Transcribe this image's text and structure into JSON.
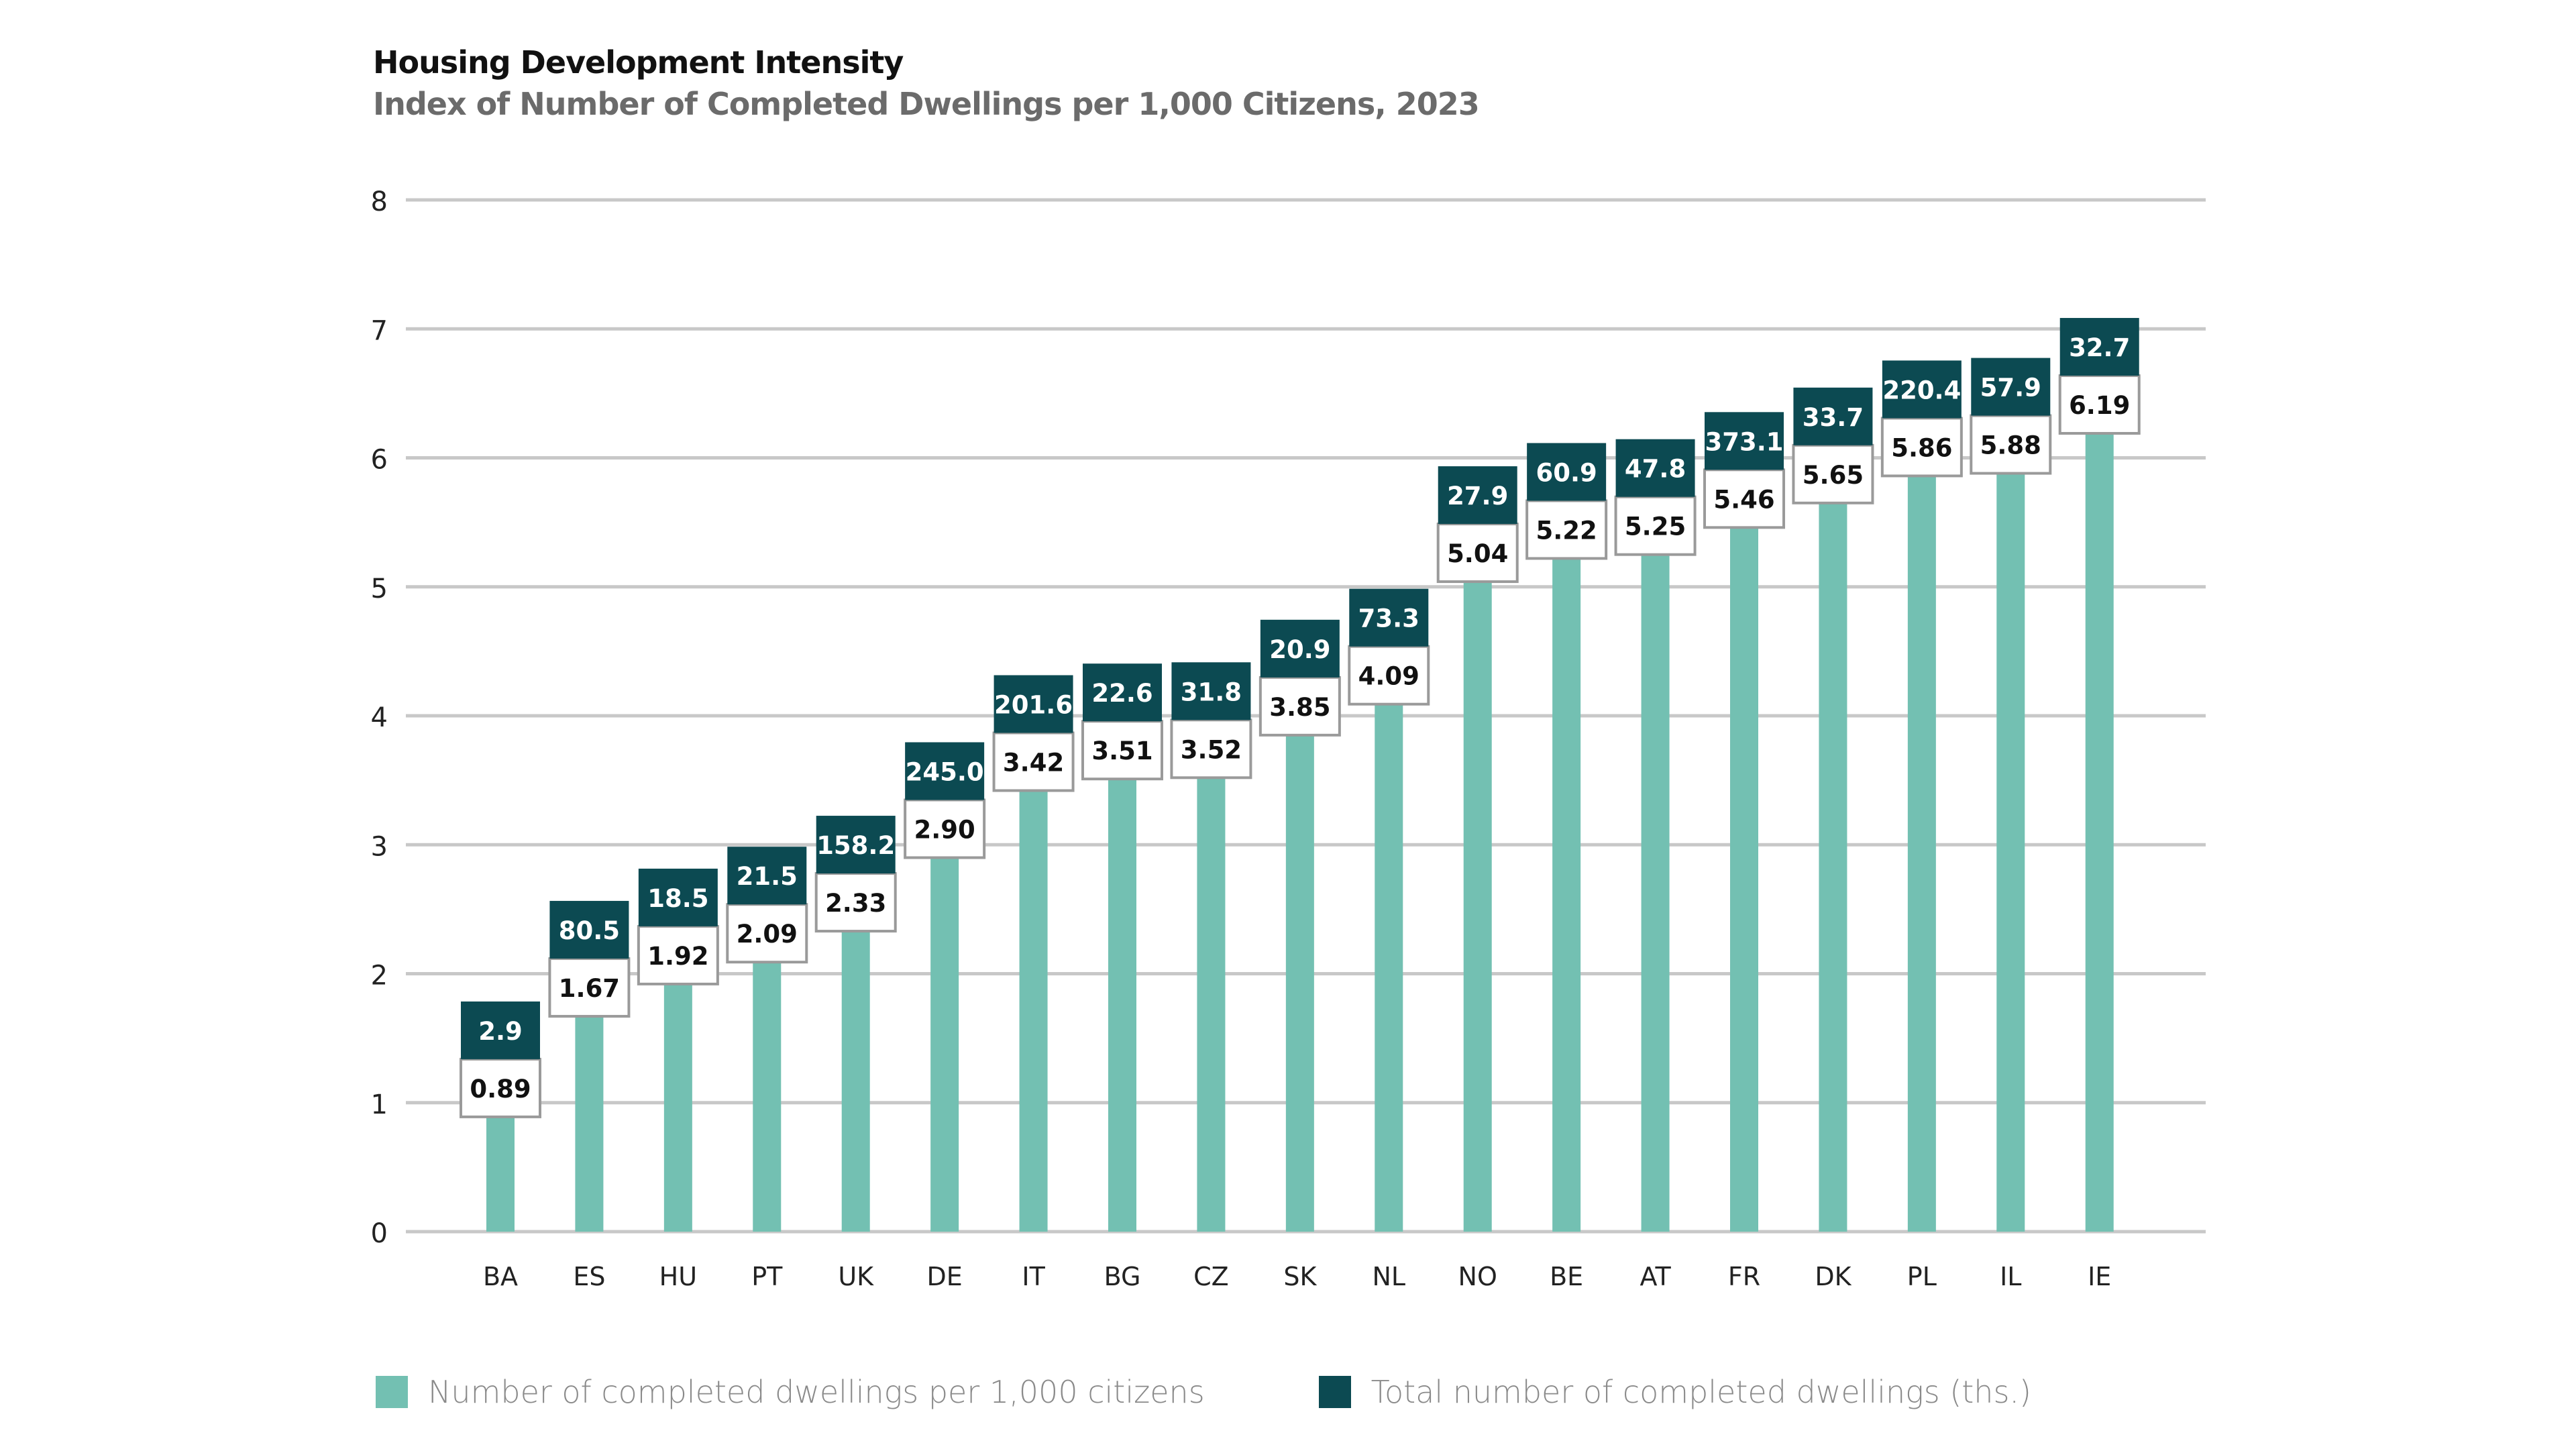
{
  "title": "Housing Development Intensity",
  "subtitle": "Index of Number of Completed Dwellings per 1,000 Citizens, 2023",
  "colors": {
    "per_capita": "#73c0b2",
    "total": "#0c4a52",
    "grid": "#c8c8c8",
    "label_border": "#9a9a9a"
  },
  "legend": [
    {
      "label": "Number of completed dwellings per 1,000 citizens",
      "color": "#73c0b2"
    },
    {
      "label": "Total number of completed dwellings (ths.)",
      "color": "#0c4a52"
    }
  ],
  "chart_data": {
    "type": "bar",
    "title": "Housing Development Intensity",
    "subtitle": "Index of Number of Completed Dwellings per 1,000 Citizens, 2023",
    "xlabel": "",
    "ylabel": "",
    "ylim": [
      0,
      8
    ],
    "yticks": [
      0,
      1,
      2,
      3,
      4,
      5,
      6,
      7,
      8
    ],
    "grid": true,
    "legend_position": "bottom-left",
    "categories": [
      "BA",
      "ES",
      "HU",
      "PT",
      "UK",
      "DE",
      "IT",
      "BG",
      "CZ",
      "SK",
      "NL",
      "NO",
      "BE",
      "AT",
      "FR",
      "DK",
      "PL",
      "IL",
      "IE"
    ],
    "series": [
      {
        "name": "Number of completed dwellings per 1,000 citizens",
        "values": [
          0.89,
          1.67,
          1.92,
          2.09,
          2.33,
          2.9,
          3.42,
          3.51,
          3.52,
          3.85,
          4.09,
          5.04,
          5.22,
          5.25,
          5.46,
          5.65,
          5.86,
          5.88,
          6.19
        ],
        "labels": [
          "0.89",
          "1.67",
          "1.92",
          "2.09",
          "2.33",
          "2.90",
          "3.42",
          "3.51",
          "3.52",
          "3.85",
          "4.09",
          "5.04",
          "5.22",
          "5.25",
          "5.46",
          "5.65",
          "5.86",
          "5.88",
          "6.19"
        ]
      },
      {
        "name": "Total number of completed dwellings (ths.)",
        "values": [
          2.9,
          80.5,
          18.5,
          21.5,
          158.2,
          245.0,
          201.6,
          22.6,
          31.8,
          20.9,
          73.3,
          27.9,
          60.9,
          47.8,
          373.1,
          33.7,
          220.4,
          57.9,
          32.7
        ],
        "labels": [
          "2.9",
          "80.5",
          "18.5",
          "21.5",
          "158.2",
          "245.0",
          "201.6",
          "22.6",
          "31.8",
          "20.9",
          "73.3",
          "27.9",
          "60.9",
          "47.8",
          "373.1",
          "33.7",
          "220.4",
          "57.9",
          "32.7"
        ]
      }
    ]
  }
}
